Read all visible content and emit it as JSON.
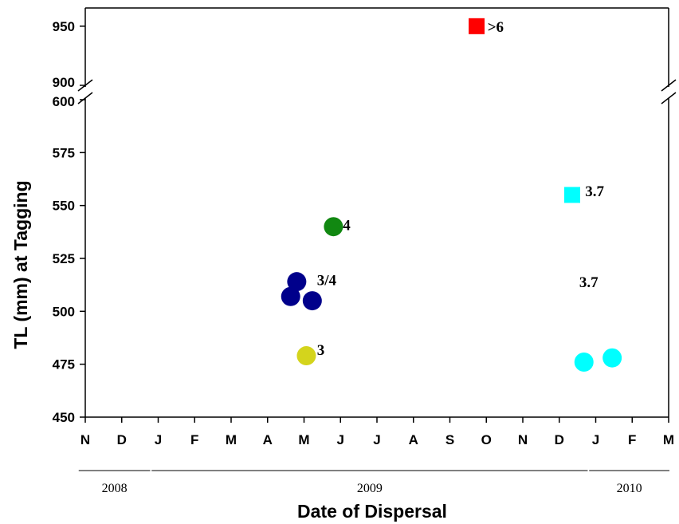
{
  "chart_data": {
    "type": "scatter",
    "xlabel": "Date of Dispersal",
    "ylabel": "TL (mm) at Tagging",
    "x_tick_labels": [
      "N",
      "D",
      "J",
      "F",
      "M",
      "A",
      "M",
      "J",
      "J",
      "A",
      "S",
      "O",
      "N",
      "D",
      "J",
      "F",
      "M"
    ],
    "x_range": [
      "Nov 2008",
      "Mar 2010"
    ],
    "years": [
      {
        "label": "2008",
        "start": "2008-11",
        "end": "2008-12"
      },
      {
        "label": "2009",
        "start": "2009-01",
        "end": "2009-12"
      },
      {
        "label": "2010",
        "start": "2010-01",
        "end": "2010-03"
      }
    ],
    "y_axis": {
      "broken": true,
      "lower_range": [
        450,
        600
      ],
      "lower_ticks": [
        450,
        475,
        500,
        525,
        550,
        575,
        600
      ],
      "upper_range": [
        900,
        960
      ],
      "upper_ticks": [
        900,
        950
      ]
    },
    "grid": false,
    "points": [
      {
        "date": "2009-04-20",
        "y": 507,
        "shape": "circle",
        "color": "#00008B"
      },
      {
        "date": "2009-04-25",
        "y": 514,
        "shape": "circle",
        "color": "#00008B"
      },
      {
        "date": "2009-05-08",
        "y": 505,
        "shape": "circle",
        "color": "#00008B"
      },
      {
        "date": "2009-05-03",
        "y": 479,
        "shape": "circle",
        "color": "#D4D41C"
      },
      {
        "date": "2009-05-26",
        "y": 540,
        "shape": "circle",
        "color": "#118811"
      },
      {
        "date": "2009-09-23",
        "y": 950,
        "shape": "square",
        "color": "#FF0000"
      },
      {
        "date": "2009-12-12",
        "y": 555,
        "shape": "square",
        "color": "#00FFFF"
      },
      {
        "date": "2009-12-22",
        "y": 476,
        "shape": "circle",
        "color": "#00FFFF"
      },
      {
        "date": "2010-01-15",
        "y": 478,
        "shape": "circle",
        "color": "#00FFFF"
      }
    ],
    "annotations": [
      {
        "text": ">6",
        "date": "2009-10-02",
        "y": 950
      },
      {
        "text": "3.7",
        "date": "2009-12-23",
        "y": 557
      },
      {
        "text": "4",
        "date": "2009-06-03",
        "y": 541
      },
      {
        "text": "3/4",
        "date": "2009-05-12",
        "y": 515
      },
      {
        "text": "3",
        "date": "2009-05-12",
        "y": 482
      },
      {
        "text": "3.7",
        "date": "2009-12-18",
        "y": 514
      }
    ]
  }
}
